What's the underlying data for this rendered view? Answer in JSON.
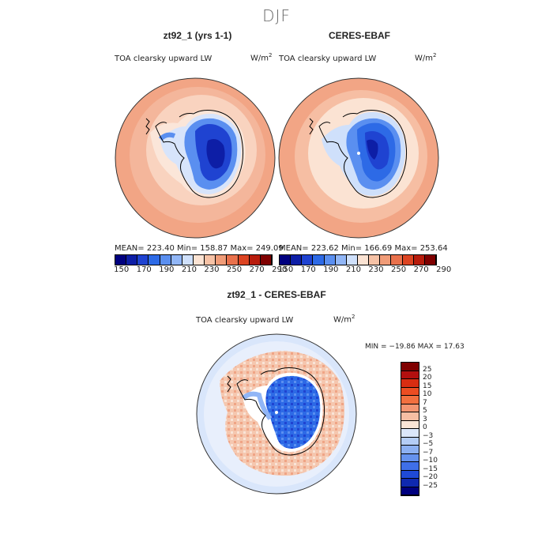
{
  "figure": {
    "season": "DJF",
    "palette": {
      "seq": [
        "#00007f",
        "#0d1ea6",
        "#1f43d1",
        "#2d6ae6",
        "#5a8ff0",
        "#91b6f6",
        "#cfe0fb",
        "#fbe3d3",
        "#f6c2a6",
        "#f09c78",
        "#e9714c",
        "#dc4422",
        "#b81c0c",
        "#7f0000"
      ],
      "land_model": "#2b55e0",
      "ocean_model": "#f3aa8d",
      "ocean_ring": "#fbdccc"
    }
  },
  "panels": {
    "model": {
      "title": "zt92_1 (yrs 1-1)",
      "variable": "TOA clearsky upward LW",
      "units": "W/m",
      "units_exp": "2",
      "stats": "MEAN= 223.40   Min= 158.87   Max= 249.09"
    },
    "obs": {
      "title": "CERES-EBAF",
      "variable": "TOA clearsky upward LW",
      "units": "W/m",
      "units_exp": "2",
      "stats": "MEAN= 223.62   Min= 166.69   Max= 253.64"
    },
    "diff": {
      "title": "zt92_1 - CERES-EBAF",
      "variable": "TOA clearsky upward LW",
      "units": "W/m",
      "units_exp": "2",
      "stats": "MIN = −19.86  MAX =  17.63"
    }
  },
  "colorbar_top": {
    "ticks": [
      "150",
      "170",
      "190",
      "210",
      "230",
      "250",
      "270",
      "290"
    ]
  },
  "colorbar_diff": {
    "colors": [
      "#7f0000",
      "#b30f0f",
      "#d92d12",
      "#ec4d22",
      "#f2703f",
      "#f39571",
      "#f6bea3",
      "#fbe5d6",
      "#dbe7fb",
      "#b4cdf6",
      "#8cb0f2",
      "#6592ee",
      "#3f6fe8",
      "#1f4ad6",
      "#0f29b0",
      "#00007f"
    ],
    "labels": [
      "25",
      "20",
      "15",
      "10",
      "7",
      "5",
      "3",
      "0",
      "−3",
      "−5",
      "−7",
      "−10",
      "−15",
      "−20",
      "−25"
    ]
  }
}
